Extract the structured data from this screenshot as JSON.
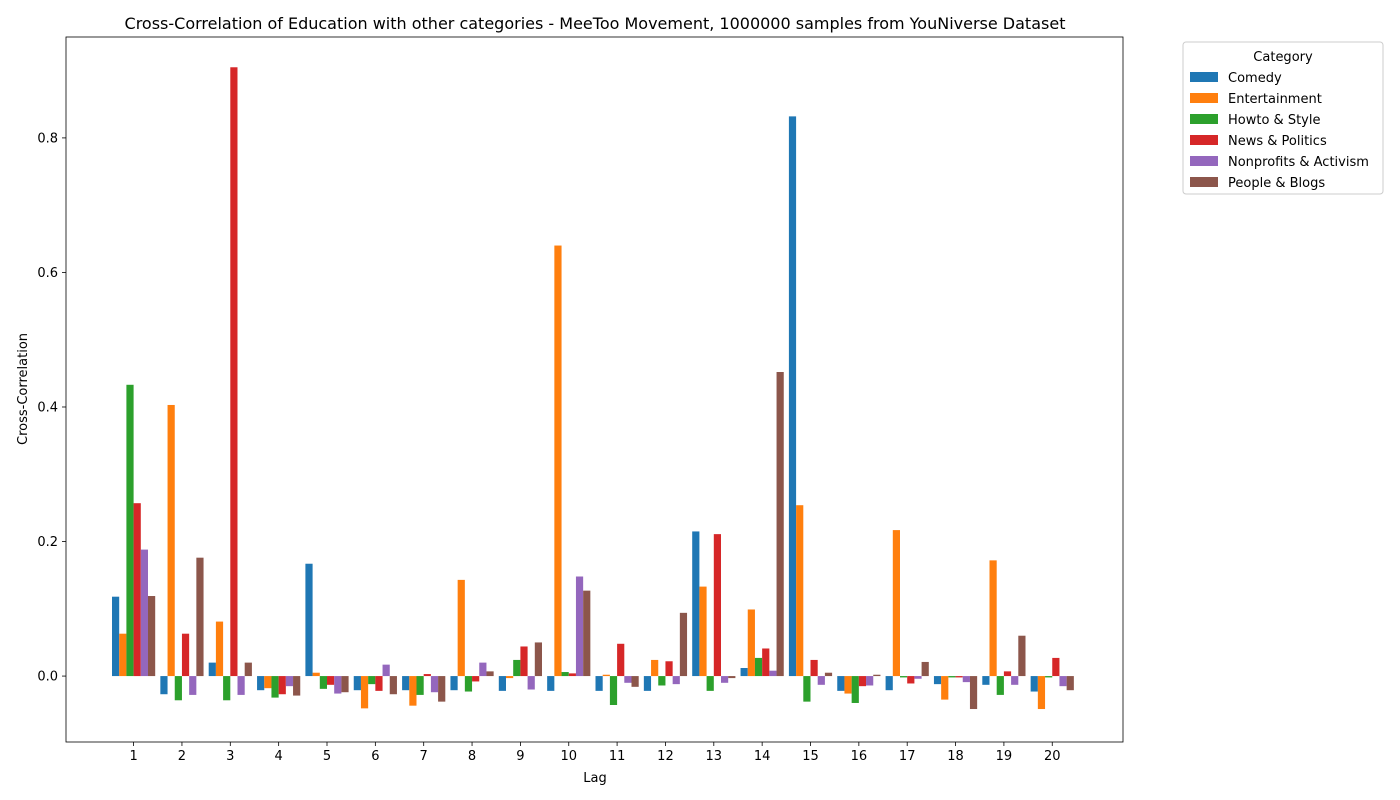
{
  "chart_data": {
    "type": "bar",
    "title": "Cross-Correlation of Education with other categories - MeeToo Movement, 1000000 samples from YouNiverse Dataset",
    "xlabel": "Lag",
    "ylabel": "Cross-Correlation",
    "ylim": [
      -0.098,
      0.95
    ],
    "yticks": [
      0.0,
      0.2,
      0.4,
      0.6,
      0.8
    ],
    "ytick_labels": [
      "0.0",
      "0.2",
      "0.4",
      "0.6",
      "0.8"
    ],
    "categories": [
      "1",
      "2",
      "3",
      "4",
      "5",
      "6",
      "7",
      "8",
      "9",
      "10",
      "11",
      "12",
      "13",
      "14",
      "15",
      "16",
      "17",
      "18",
      "19",
      "20"
    ],
    "grid": false,
    "legend": {
      "title": "Category",
      "placement": "outside-top-right"
    },
    "series": [
      {
        "name": "Comedy",
        "color": "#1f77b4",
        "values": [
          0.118,
          -0.027,
          0.02,
          -0.021,
          0.167,
          -0.021,
          -0.021,
          -0.021,
          -0.022,
          -0.022,
          -0.022,
          -0.022,
          0.215,
          0.012,
          0.832,
          -0.022,
          -0.021,
          -0.012,
          -0.013,
          -0.023
        ]
      },
      {
        "name": "Entertainment",
        "color": "#ff7f0e",
        "values": [
          0.063,
          0.403,
          0.081,
          -0.018,
          0.005,
          -0.048,
          -0.044,
          0.143,
          -0.003,
          0.64,
          0.002,
          0.024,
          0.133,
          0.099,
          0.254,
          -0.026,
          0.217,
          -0.035,
          0.172,
          -0.049
        ]
      },
      {
        "name": "Howto & Style",
        "color": "#2ca02c",
        "values": [
          0.433,
          -0.036,
          -0.036,
          -0.032,
          -0.019,
          -0.012,
          -0.028,
          -0.023,
          0.024,
          0.006,
          -0.043,
          -0.014,
          -0.022,
          0.027,
          -0.038,
          -0.04,
          -0.002,
          -0.002,
          -0.028,
          -0.002
        ]
      },
      {
        "name": "News & Politics",
        "color": "#d62728",
        "values": [
          0.257,
          0.063,
          0.905,
          -0.027,
          -0.013,
          -0.022,
          0.003,
          -0.008,
          0.044,
          0.004,
          0.048,
          0.022,
          0.211,
          0.041,
          0.024,
          -0.015,
          -0.011,
          -0.002,
          0.007,
          0.027
        ]
      },
      {
        "name": "Nonprofits & Activism",
        "color": "#9467bd",
        "values": [
          0.188,
          -0.028,
          -0.028,
          -0.015,
          -0.026,
          0.017,
          -0.024,
          0.02,
          -0.02,
          0.148,
          -0.01,
          -0.012,
          -0.01,
          0.008,
          -0.013,
          -0.014,
          -0.004,
          -0.009,
          -0.013,
          -0.015
        ]
      },
      {
        "name": "People & Blogs",
        "color": "#8c564b",
        "values": [
          0.119,
          0.176,
          0.02,
          -0.029,
          -0.024,
          -0.027,
          -0.038,
          0.007,
          0.05,
          0.127,
          -0.016,
          0.094,
          -0.003,
          0.452,
          0.005,
          0.002,
          0.021,
          -0.049,
          0.06,
          -0.021
        ]
      }
    ]
  }
}
